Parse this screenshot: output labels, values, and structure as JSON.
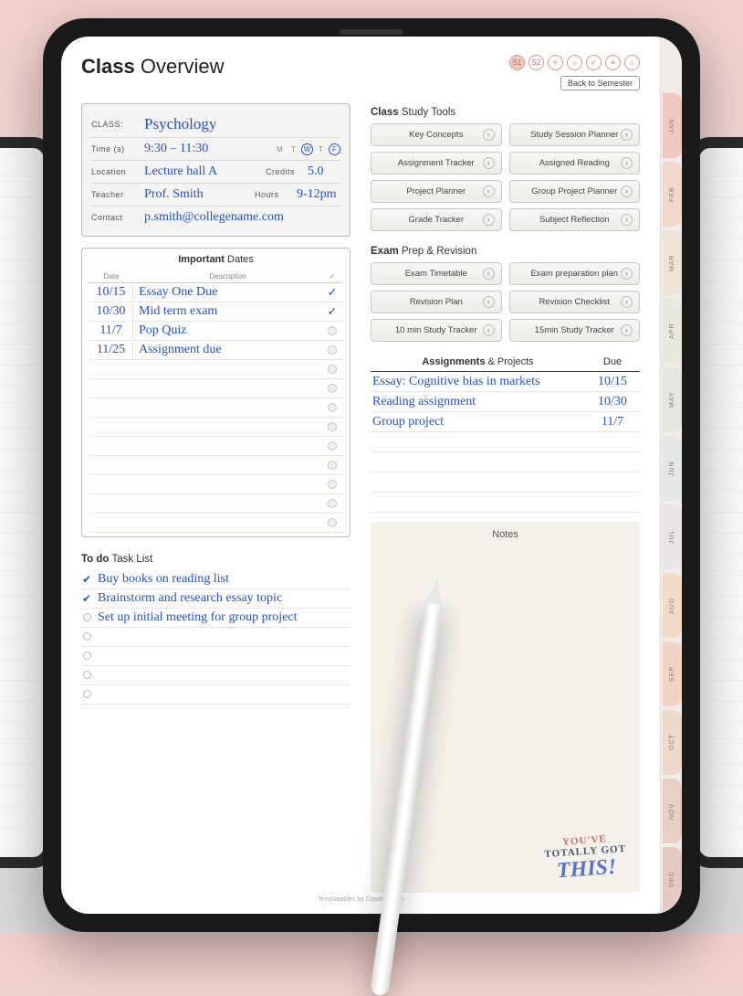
{
  "header": {
    "title_bold": "Class",
    "title_light": "Overview",
    "back_label": "Back to Semester",
    "icons": [
      "S1",
      "S2",
      "✧",
      "☼",
      "✓",
      "≡",
      "⌂"
    ]
  },
  "side_tabs": [
    "JAN",
    "FEB",
    "MAR",
    "APR",
    "MAY",
    "JUN",
    "JUL",
    "AUG",
    "SEP",
    "OCT",
    "NOV",
    "DEC"
  ],
  "class_info": {
    "class_label": "CLASS:",
    "class_value": "Psychology",
    "time_label": "Time (s)",
    "time_value": "9:30 – 11:30",
    "days_labels": [
      "M",
      "T",
      "W",
      "T",
      "F"
    ],
    "days_on": [
      false,
      false,
      true,
      false,
      true
    ],
    "location_label": "Location",
    "location_value": "Lecture hall A",
    "credits_label": "Credits",
    "credits_value": "5.0",
    "teacher_label": "Teacher",
    "teacher_value": "Prof. Smith",
    "hours_label": "Hours",
    "hours_value": "9-12pm",
    "contact_label": "Contact",
    "contact_value": "p.smith@collegename.com"
  },
  "important_dates": {
    "title_bold": "Important",
    "title_light": "Dates",
    "col_date": "Date",
    "col_desc": "Description",
    "rows": [
      {
        "date": "10/15",
        "desc": "Essay One Due",
        "checked": true
      },
      {
        "date": "10/30",
        "desc": "Mid term exam",
        "checked": true
      },
      {
        "date": "11/7",
        "desc": "Pop Quiz",
        "checked": false
      },
      {
        "date": "11/25",
        "desc": "Assignment due",
        "checked": false
      }
    ],
    "blank_rows": 9
  },
  "todo": {
    "title_bold": "To do",
    "title_light": "Task List",
    "items": [
      {
        "text": "Buy books on reading list",
        "checked": true
      },
      {
        "text": "Brainstorm and research essay topic",
        "checked": true
      },
      {
        "text": "Set up initial meeting for group project",
        "checked": false
      }
    ],
    "blank_rows": 4
  },
  "study_tools": {
    "title_bold": "Class",
    "title_light": "Study Tools",
    "buttons": [
      "Key Concepts",
      "Study Session Planner",
      "Assignment Tracker",
      "Assigned Reading",
      "Project Planner",
      "Group Project Planner",
      "Grade Tracker",
      "Subject Reflection"
    ]
  },
  "exam_prep": {
    "title_bold": "Exam",
    "title_light": "Prep & Revision",
    "buttons": [
      "Exam Timetable",
      "Exam preparation plan",
      "Revision Plan",
      "Revision Checklist",
      "10 min Study Tracker",
      "15min Study Tracker"
    ]
  },
  "assignments": {
    "title_bold": "Assignments",
    "title_light": "& Projects",
    "due_label": "Due",
    "rows": [
      {
        "name": "Essay: Cognitive bias in markets",
        "due": "10/15"
      },
      {
        "name": "Reading assignment",
        "due": "10/30"
      },
      {
        "name": "Group project",
        "due": "11/7"
      }
    ],
    "blank_rows": 4
  },
  "notes": {
    "title": "Notes",
    "sticker_l1": "YOU'VE",
    "sticker_l2": "TOTALLY GOT",
    "sticker_l3": "THIS!"
  },
  "footer": "Templatables by Creative Jam"
}
